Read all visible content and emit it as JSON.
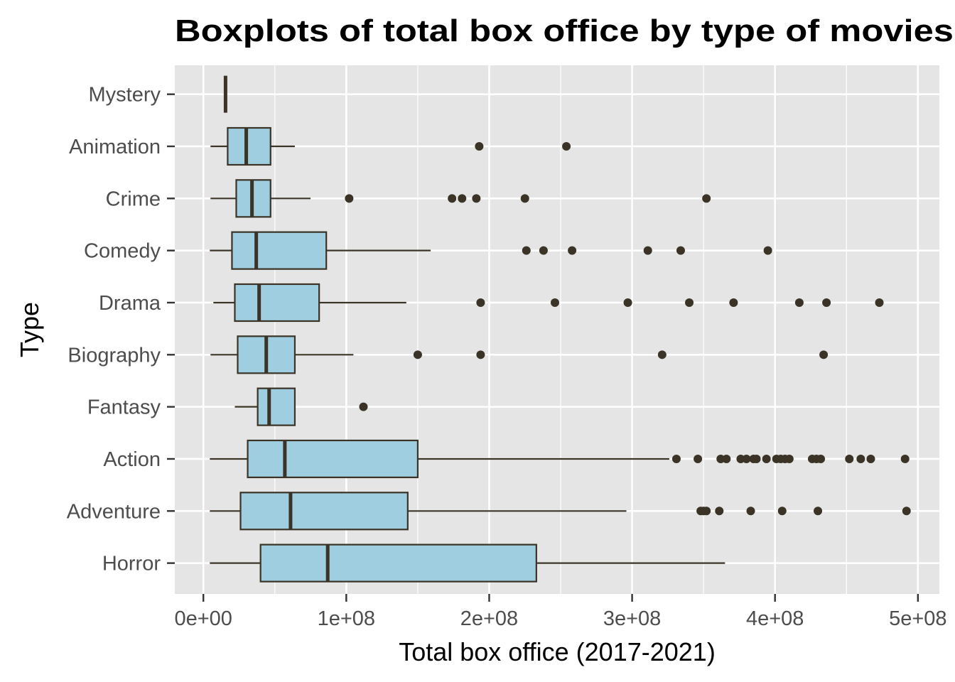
{
  "chart_data": {
    "type": "boxplot",
    "title": "Boxplots of total box office by type of movies",
    "xlabel": "Total box office (2017-2021)",
    "ylabel": "Type",
    "xlim": [
      -20000000,
      515000000
    ],
    "x_ticks": [
      0,
      100000000,
      200000000,
      300000000,
      400000000,
      500000000
    ],
    "x_tick_labels": [
      "0e+00",
      "1e+08",
      "2e+08",
      "3e+08",
      "4e+08",
      "5e+08"
    ],
    "grid": true,
    "colors": {
      "panel_background": "#e5e5e5",
      "grid_line": "#ffffff",
      "box_fill": "#9ecee0",
      "box_outline": "#3a3326",
      "point": "#3a3326"
    },
    "categories": [
      "Mystery",
      "Animation",
      "Crime",
      "Comedy",
      "Drama",
      "Biography",
      "Fantasy",
      "Action",
      "Adventure",
      "Horror"
    ],
    "boxes": [
      {
        "category": "Mystery",
        "whisker_low": 15500000,
        "q1": 15500000,
        "median": 15500000,
        "q3": 15500000,
        "whisker_high": 15500000,
        "outliers": []
      },
      {
        "category": "Animation",
        "whisker_low": 5000000,
        "q1": 17000000,
        "median": 30000000,
        "q3": 47000000,
        "whisker_high": 64000000,
        "outliers": [
          193000000,
          254000000
        ]
      },
      {
        "category": "Crime",
        "whisker_low": 5000000,
        "q1": 23000000,
        "median": 34000000,
        "q3": 47000000,
        "whisker_high": 75000000,
        "outliers": [
          102000000,
          174000000,
          181000000,
          191000000,
          225000000,
          352000000
        ]
      },
      {
        "category": "Comedy",
        "whisker_low": 4500000,
        "q1": 20000000,
        "median": 37000000,
        "q3": 86000000,
        "whisker_high": 159000000,
        "outliers": [
          226000000,
          238000000,
          258000000,
          311000000,
          334000000,
          395000000
        ]
      },
      {
        "category": "Drama",
        "whisker_low": 7000000,
        "q1": 22000000,
        "median": 39000000,
        "q3": 81000000,
        "whisker_high": 142000000,
        "outliers": [
          194000000,
          246000000,
          297000000,
          340000000,
          371000000,
          417000000,
          436000000,
          473000000
        ]
      },
      {
        "category": "Biography",
        "whisker_low": 5000000,
        "q1": 24000000,
        "median": 44000000,
        "q3": 64000000,
        "whisker_high": 105000000,
        "outliers": [
          150000000,
          194000000,
          321000000,
          434000000
        ]
      },
      {
        "category": "Fantasy",
        "whisker_low": 22000000,
        "q1": 38000000,
        "median": 46000000,
        "q3": 64000000,
        "whisker_high": 64000000,
        "outliers": [
          112000000
        ]
      },
      {
        "category": "Action",
        "whisker_low": 4500000,
        "q1": 31000000,
        "median": 57000000,
        "q3": 150000000,
        "whisker_high": 326000000,
        "outliers": [
          331000000,
          346000000,
          362000000,
          366000000,
          376000000,
          380000000,
          385000000,
          387000000,
          394000000,
          401000000,
          404000000,
          407000000,
          410000000,
          426000000,
          429000000,
          432000000,
          452000000,
          460000000,
          467000000,
          491000000
        ]
      },
      {
        "category": "Adventure",
        "whisker_low": 4500000,
        "q1": 26000000,
        "median": 61000000,
        "q3": 143000000,
        "whisker_high": 296000000,
        "outliers": [
          348000000,
          350000000,
          352000000,
          361000000,
          383000000,
          405000000,
          430000000,
          492000000
        ]
      },
      {
        "category": "Horror",
        "whisker_low": 4500000,
        "q1": 40000000,
        "median": 87000000,
        "q3": 233000000,
        "whisker_high": 365000000,
        "outliers": []
      }
    ]
  }
}
